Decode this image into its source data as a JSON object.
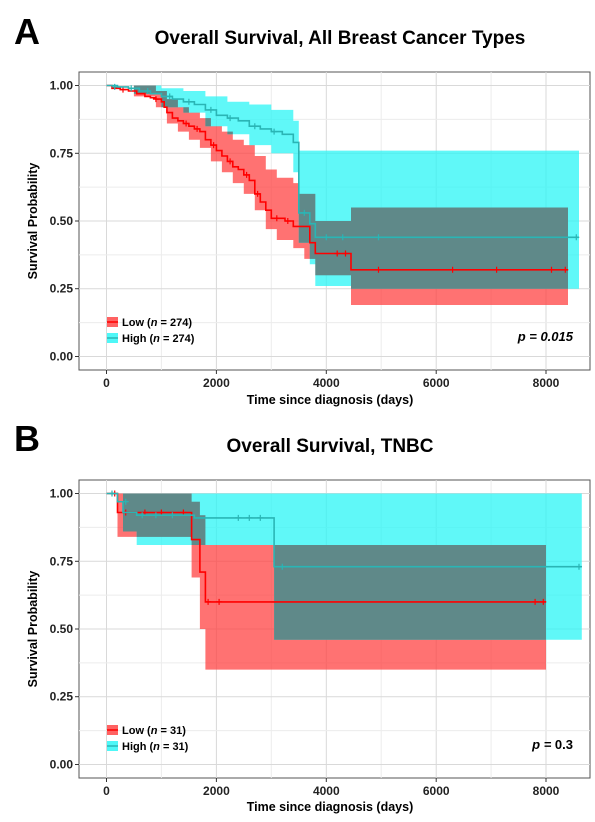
{
  "colors": {
    "low": "#ff0000",
    "low_band": "#ff3b3b",
    "high": "#2ab5b5",
    "high_band": "#22f5f5",
    "overlap_band": "#5f8585",
    "grid": "#d9d9d9",
    "panel_border": "#555555"
  },
  "chart_data": [
    {
      "panel": "A",
      "type": "line",
      "subtype": "kaplan-meier",
      "title": "Overall Survival, All Breast Cancer Types",
      "xlabel": "Time since diagnosis (days)",
      "ylabel": "Survival Probability",
      "xlim": [
        -500,
        8800
      ],
      "ylim": [
        -0.05,
        1.05
      ],
      "xticks": [
        0,
        2000,
        4000,
        6000,
        8000
      ],
      "xtick_labels": [
        "0",
        "2000",
        "4000",
        "6000",
        "8000"
      ],
      "yticks": [
        0,
        0.25,
        0.5,
        0.75,
        1.0
      ],
      "ytick_labels": [
        "0.00",
        "0.25",
        "0.50",
        "0.75",
        "1.00"
      ],
      "grid": true,
      "legend_position": "bottom-left",
      "legend": [
        {
          "key": "low",
          "prefix": "Low (",
          "italic": "n",
          "suffix": " = 274)"
        },
        {
          "key": "high",
          "prefix": "High (",
          "italic": "n",
          "suffix": " = 274)"
        }
      ],
      "pvalue_text": {
        "prefix": "p = ",
        "value": "0.015",
        "italic_value": true
      },
      "series": [
        {
          "name": "Low",
          "key": "low",
          "end_x": 8400,
          "steps": [
            [
              0,
              1.0
            ],
            [
              100,
              0.99
            ],
            [
              250,
              0.985
            ],
            [
              400,
              0.98
            ],
            [
              550,
              0.97
            ],
            [
              700,
              0.96
            ],
            [
              800,
              0.955
            ],
            [
              900,
              0.95
            ],
            [
              1000,
              0.94
            ],
            [
              1050,
              0.92
            ],
            [
              1100,
              0.9
            ],
            [
              1200,
              0.88
            ],
            [
              1300,
              0.87
            ],
            [
              1400,
              0.86
            ],
            [
              1500,
              0.85
            ],
            [
              1600,
              0.84
            ],
            [
              1700,
              0.83
            ],
            [
              1800,
              0.8
            ],
            [
              1900,
              0.78
            ],
            [
              2000,
              0.76
            ],
            [
              2100,
              0.74
            ],
            [
              2200,
              0.72
            ],
            [
              2300,
              0.7
            ],
            [
              2400,
              0.69
            ],
            [
              2500,
              0.67
            ],
            [
              2600,
              0.65
            ],
            [
              2700,
              0.6
            ],
            [
              2800,
              0.57
            ],
            [
              2900,
              0.54
            ],
            [
              3000,
              0.51
            ],
            [
              3250,
              0.5
            ],
            [
              3400,
              0.48
            ],
            [
              3700,
              0.42
            ],
            [
              3800,
              0.38
            ],
            [
              4450,
              0.32
            ]
          ],
          "lower": [
            [
              0,
              1.0
            ],
            [
              500,
              0.96
            ],
            [
              900,
              0.92
            ],
            [
              1100,
              0.86
            ],
            [
              1300,
              0.83
            ],
            [
              1500,
              0.8
            ],
            [
              1700,
              0.77
            ],
            [
              1900,
              0.72
            ],
            [
              2100,
              0.68
            ],
            [
              2300,
              0.64
            ],
            [
              2500,
              0.6
            ],
            [
              2700,
              0.54
            ],
            [
              2900,
              0.47
            ],
            [
              3100,
              0.43
            ],
            [
              3400,
              0.4
            ],
            [
              3600,
              0.36
            ],
            [
              3800,
              0.3
            ],
            [
              4450,
              0.19
            ]
          ],
          "upper": [
            [
              0,
              1.0
            ],
            [
              500,
              1.0
            ],
            [
              900,
              0.98
            ],
            [
              1100,
              0.95
            ],
            [
              1300,
              0.92
            ],
            [
              1500,
              0.9
            ],
            [
              1700,
              0.88
            ],
            [
              1900,
              0.85
            ],
            [
              2100,
              0.83
            ],
            [
              2300,
              0.8
            ],
            [
              2500,
              0.78
            ],
            [
              2700,
              0.74
            ],
            [
              2900,
              0.69
            ],
            [
              3100,
              0.66
            ],
            [
              3400,
              0.64
            ],
            [
              3500,
              0.6
            ],
            [
              3800,
              0.5
            ],
            [
              4450,
              0.55
            ]
          ],
          "censor": [
            [
              300,
              0.985
            ],
            [
              900,
              0.95
            ],
            [
              1450,
              0.86
            ],
            [
              1650,
              0.84
            ],
            [
              1950,
              0.78
            ],
            [
              2250,
              0.72
            ],
            [
              2550,
              0.67
            ],
            [
              2750,
              0.6
            ],
            [
              3100,
              0.51
            ],
            [
              3300,
              0.5
            ],
            [
              4200,
              0.38
            ],
            [
              4350,
              0.38
            ],
            [
              4950,
              0.32
            ],
            [
              6300,
              0.32
            ],
            [
              7100,
              0.32
            ],
            [
              8100,
              0.32
            ],
            [
              8350,
              0.32
            ]
          ]
        },
        {
          "name": "High",
          "key": "high",
          "end_x": 8600,
          "steps": [
            [
              0,
              1.0
            ],
            [
              200,
              0.995
            ],
            [
              400,
              0.99
            ],
            [
              600,
              0.98
            ],
            [
              800,
              0.97
            ],
            [
              1000,
              0.96
            ],
            [
              1200,
              0.95
            ],
            [
              1400,
              0.94
            ],
            [
              1600,
              0.93
            ],
            [
              1800,
              0.91
            ],
            [
              2000,
              0.89
            ],
            [
              2200,
              0.88
            ],
            [
              2400,
              0.87
            ],
            [
              2600,
              0.85
            ],
            [
              2800,
              0.84
            ],
            [
              3000,
              0.83
            ],
            [
              3200,
              0.82
            ],
            [
              3400,
              0.79
            ],
            [
              3500,
              0.53
            ],
            [
              3700,
              0.49
            ],
            [
              3800,
              0.44
            ]
          ],
          "lower": [
            [
              0,
              1.0
            ],
            [
              500,
              0.97
            ],
            [
              1000,
              0.92
            ],
            [
              1400,
              0.9
            ],
            [
              1800,
              0.85
            ],
            [
              2200,
              0.82
            ],
            [
              2600,
              0.78
            ],
            [
              3000,
              0.75
            ],
            [
              3400,
              0.68
            ],
            [
              3500,
              0.42
            ],
            [
              3700,
              0.34
            ],
            [
              3800,
              0.26
            ],
            [
              4450,
              0.25
            ]
          ],
          "upper": [
            [
              0,
              1.0
            ],
            [
              1000,
              0.99
            ],
            [
              1400,
              0.98
            ],
            [
              1800,
              0.96
            ],
            [
              2200,
              0.94
            ],
            [
              2600,
              0.93
            ],
            [
              3000,
              0.91
            ],
            [
              3400,
              0.87
            ],
            [
              3500,
              0.76
            ]
          ],
          "censor": [
            [
              150,
              0.995
            ],
            [
              450,
              0.99
            ],
            [
              750,
              0.98
            ],
            [
              1150,
              0.96
            ],
            [
              1500,
              0.94
            ],
            [
              1900,
              0.91
            ],
            [
              2250,
              0.88
            ],
            [
              2700,
              0.85
            ],
            [
              3050,
              0.83
            ],
            [
              3600,
              0.53
            ],
            [
              4000,
              0.44
            ],
            [
              4300,
              0.44
            ],
            [
              4950,
              0.44
            ],
            [
              8550,
              0.44
            ]
          ]
        }
      ]
    },
    {
      "panel": "B",
      "type": "line",
      "subtype": "kaplan-meier",
      "title": "Overall Survival, TNBC",
      "xlabel": "Time since diagnosis (days)",
      "ylabel": "Survival Probability",
      "xlim": [
        -500,
        8800
      ],
      "ylim": [
        -0.05,
        1.05
      ],
      "xticks": [
        0,
        2000,
        4000,
        6000,
        8000
      ],
      "xtick_labels": [
        "0",
        "2000",
        "4000",
        "6000",
        "8000"
      ],
      "yticks": [
        0,
        0.25,
        0.5,
        0.75,
        1.0
      ],
      "ytick_labels": [
        "0.00",
        "0.25",
        "0.50",
        "0.75",
        "1.00"
      ],
      "grid": true,
      "legend_position": "bottom-left",
      "legend": [
        {
          "key": "low",
          "prefix": "Low (",
          "italic": "n",
          "suffix": " = 31)"
        },
        {
          "key": "high",
          "prefix": "High (",
          "italic": "n",
          "suffix": " = 31)"
        }
      ],
      "pvalue_text": {
        "prefix": "p = ",
        "value": "0.3",
        "italic_value": false
      },
      "series": [
        {
          "name": "Low",
          "key": "low",
          "end_x": 8000,
          "steps": [
            [
              0,
              1.0
            ],
            [
              200,
              0.93
            ],
            [
              1550,
              0.83
            ],
            [
              1700,
              0.71
            ],
            [
              1800,
              0.6
            ]
          ],
          "lower": [
            [
              0,
              1.0
            ],
            [
              200,
              0.84
            ],
            [
              500,
              0.84
            ],
            [
              1550,
              0.69
            ],
            [
              1700,
              0.5
            ],
            [
              1800,
              0.35
            ]
          ],
          "upper": [
            [
              0,
              1.0
            ],
            [
              1550,
              0.97
            ],
            [
              1700,
              0.92
            ],
            [
              1800,
              0.81
            ]
          ],
          "censor": [
            [
              150,
              1.0
            ],
            [
              350,
              0.93
            ],
            [
              700,
              0.93
            ],
            [
              1000,
              0.93
            ],
            [
              1400,
              0.93
            ],
            [
              1850,
              0.6
            ],
            [
              2050,
              0.6
            ],
            [
              7800,
              0.6
            ],
            [
              7950,
              0.6
            ]
          ]
        },
        {
          "name": "High",
          "key": "high",
          "end_x": 8650,
          "steps": [
            [
              0,
              1.0
            ],
            [
              200,
              0.97
            ],
            [
              300,
              0.93
            ],
            [
              550,
              0.92
            ],
            [
              1600,
              0.91
            ],
            [
              3050,
              0.73
            ]
          ],
          "lower": [
            [
              0,
              1.0
            ],
            [
              300,
              0.86
            ],
            [
              550,
              0.81
            ],
            [
              1600,
              0.81
            ],
            [
              3050,
              0.46
            ]
          ],
          "upper": [
            [
              0,
              1.0
            ]
          ],
          "censor": [
            [
              100,
              1.0
            ],
            [
              350,
              0.97
            ],
            [
              650,
              0.92
            ],
            [
              900,
              0.92
            ],
            [
              1200,
              0.92
            ],
            [
              2400,
              0.91
            ],
            [
              2600,
              0.91
            ],
            [
              2800,
              0.91
            ],
            [
              3200,
              0.73
            ],
            [
              8600,
              0.73
            ]
          ]
        }
      ]
    }
  ]
}
